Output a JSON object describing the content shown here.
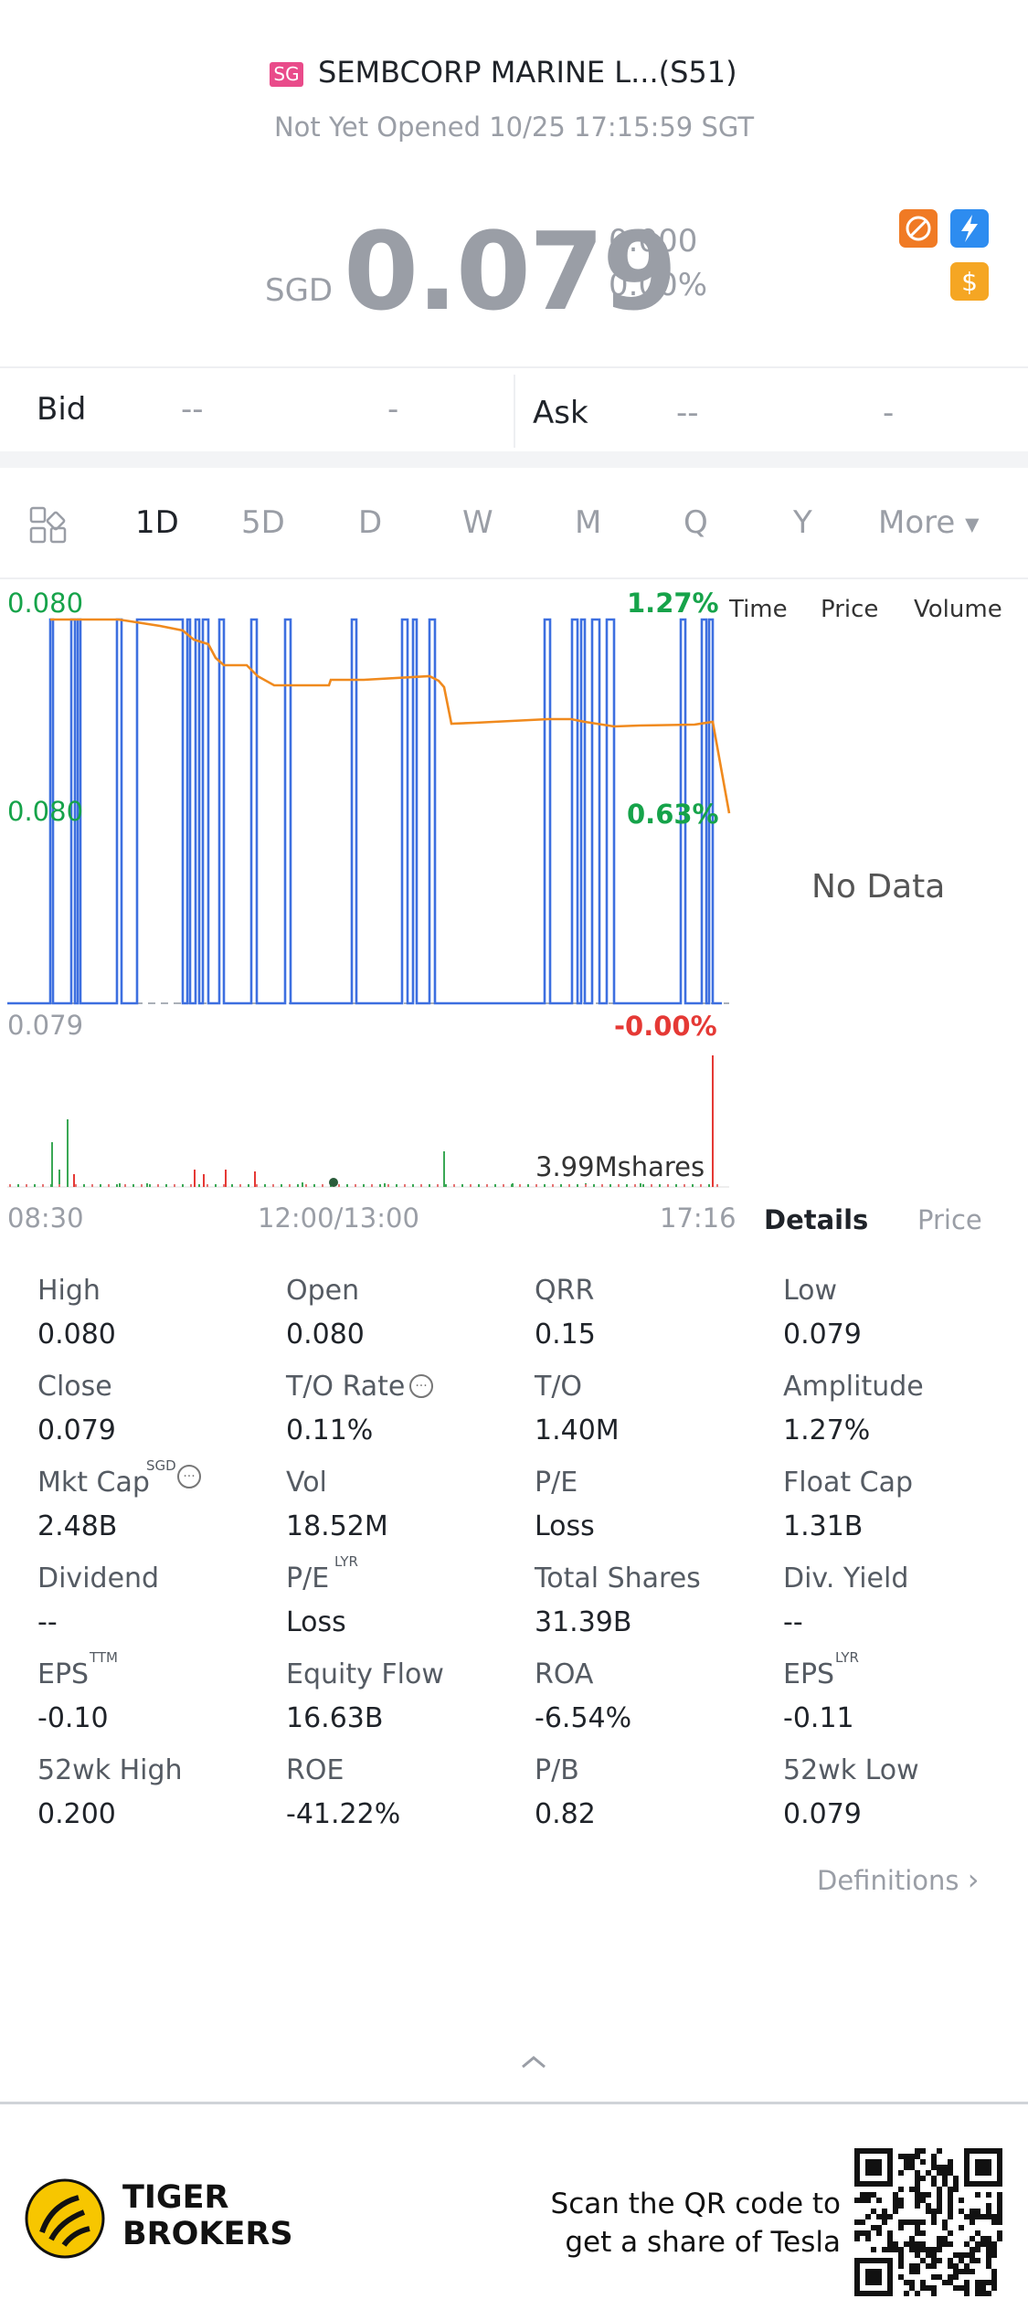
{
  "header": {
    "market_tag": "SG",
    "title": "SEMBCORP MARINE L...(S51)",
    "status": "Not Yet Opened 10/25 17:15:59 SGT"
  },
  "quote": {
    "currency": "SGD",
    "price": "0.079",
    "change": "0.000",
    "change_pct": "0.00%"
  },
  "bid_ask": {
    "bid_label": "Bid",
    "bid_price": "--",
    "bid_size": "-",
    "ask_label": "Ask",
    "ask_price": "--",
    "ask_size": "-"
  },
  "tabs": [
    "1D",
    "5D",
    "D",
    "W",
    "M",
    "Q",
    "Y",
    "More"
  ],
  "chart": {
    "y_top": "0.080",
    "y_mid": "0.080",
    "y_bottom": "0.079",
    "pct_top": "1.27%",
    "pct_mid": "0.63%",
    "pct_bottom": "-0.00%",
    "volume_label": "3.99Mshares",
    "x_start": "08:30",
    "x_mid": "12:00/13:00",
    "x_end": "17:16"
  },
  "chart_data": {
    "type": "line",
    "x_labels": [
      "08:30",
      "12:00/13:00",
      "17:16"
    ],
    "ylim": [
      0.079,
      0.08
    ],
    "series": [],
    "volume_label": "3.99Mshares"
  },
  "trades": {
    "headers": [
      "Time",
      "Price",
      "Volume"
    ],
    "empty": "No Data",
    "tab_details": "Details",
    "tab_price": "Price"
  },
  "stats": [
    {
      "label": "High",
      "value": "0.080"
    },
    {
      "label": "Open",
      "value": "0.080"
    },
    {
      "label": "QRR",
      "value": "0.15"
    },
    {
      "label": "Low",
      "value": "0.079"
    },
    {
      "label": "Close",
      "value": "0.079"
    },
    {
      "label": "T/O Rate",
      "value": "0.11%"
    },
    {
      "label": "T/O",
      "value": "1.40M"
    },
    {
      "label": "Amplitude",
      "value": "1.27%"
    },
    {
      "label": "Mkt Cap",
      "value": "2.48B"
    },
    {
      "label": "Vol",
      "value": "18.52M"
    },
    {
      "label": "P/E",
      "value": "Loss"
    },
    {
      "label": "Float Cap",
      "value": "1.31B"
    },
    {
      "label": "Dividend",
      "value": "--"
    },
    {
      "label": "P/E",
      "value": "Loss"
    },
    {
      "label": "Total Shares",
      "value": "31.39B"
    },
    {
      "label": "Div. Yield",
      "value": "--"
    },
    {
      "label": "EPS",
      "value": "-0.10"
    },
    {
      "label": "Equity Flow",
      "value": "16.63B"
    },
    {
      "label": "ROA",
      "value": "-6.54%"
    },
    {
      "label": "EPS",
      "value": "-0.11"
    },
    {
      "label": "52wk High",
      "value": "0.200"
    },
    {
      "label": "ROE",
      "value": "-41.22%"
    },
    {
      "label": "P/B",
      "value": "0.82"
    },
    {
      "label": "52wk Low",
      "value": "0.079"
    }
  ],
  "superscripts": {
    "mkt_cap": "SGD",
    "pe": "LYR",
    "eps1": "TTM",
    "eps2": "LYR"
  },
  "definitions_link": "Definitions",
  "footer": {
    "brand_line1": "TIGER",
    "brand_line2": "BROKERS",
    "promo_line1": "Scan the QR code to",
    "promo_line2": "get a share of Tesla"
  },
  "colors": {
    "positive": "#16a34a",
    "negative": "#e53935",
    "line_blue": "#3d6fe0",
    "line_orange": "#f08a1e"
  }
}
